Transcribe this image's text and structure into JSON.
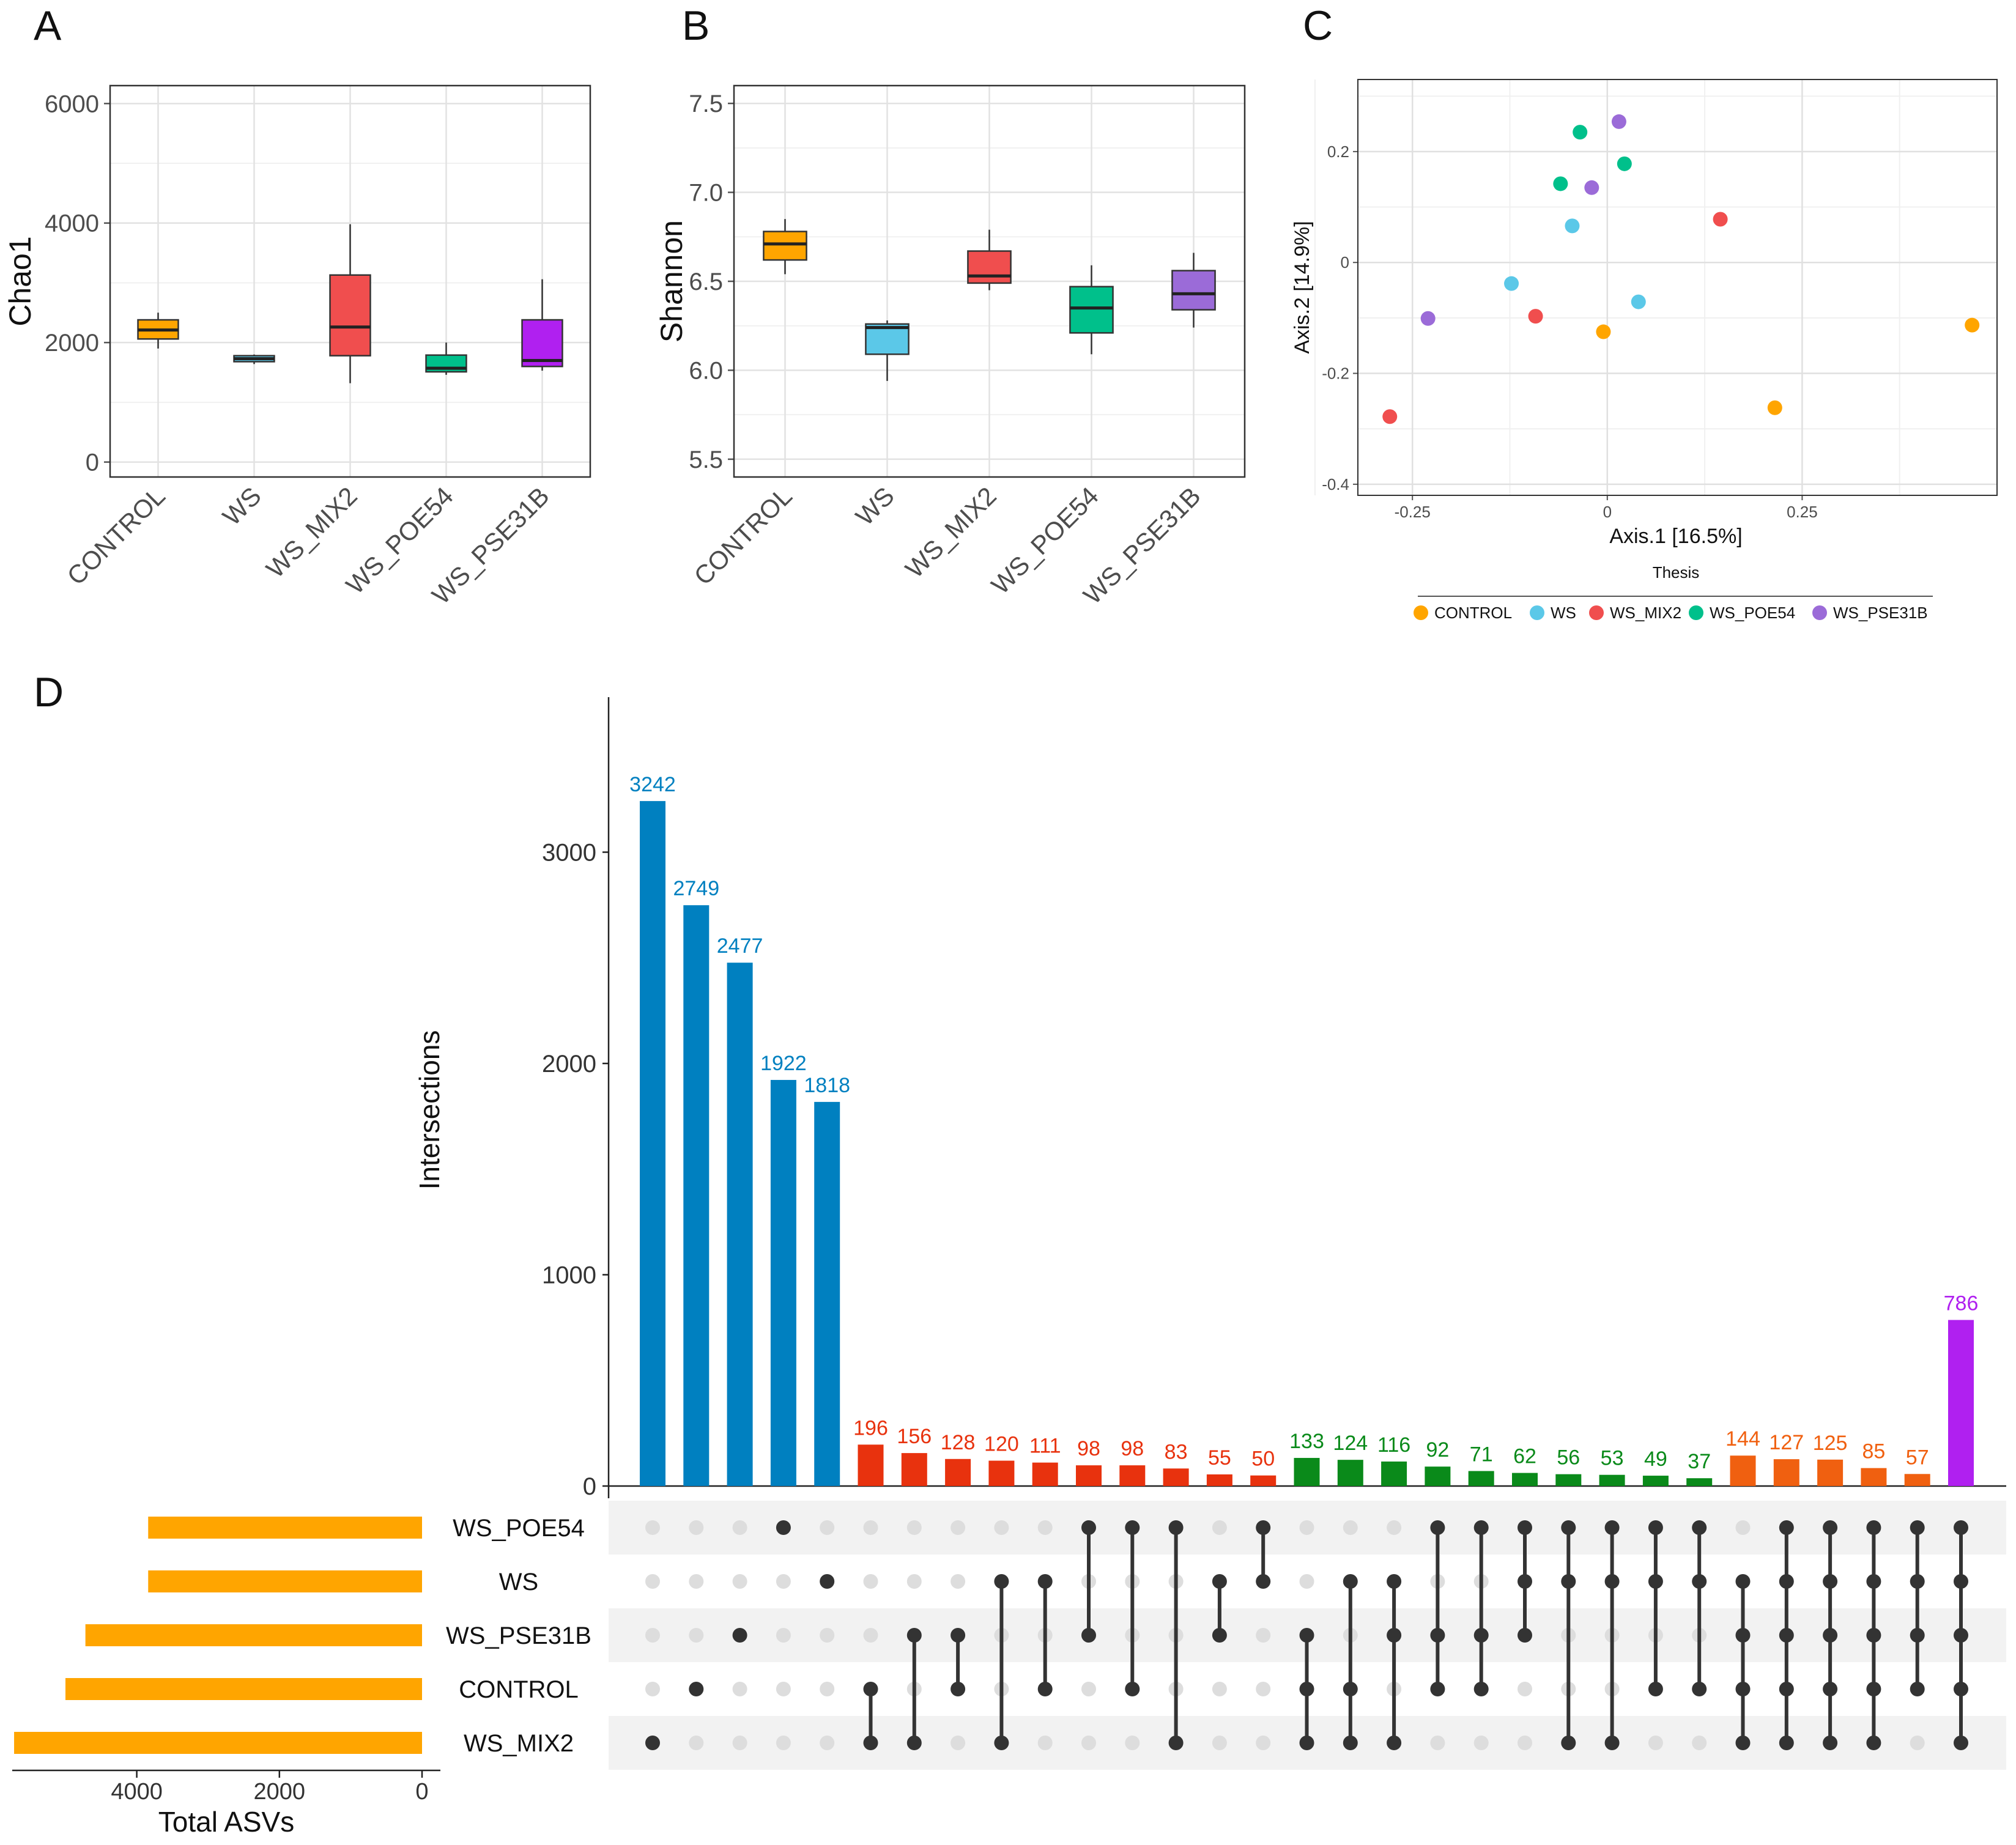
{
  "panel_labels": {
    "a": "A",
    "b": "B",
    "c": "C",
    "d": "D"
  },
  "colors": {
    "CONTROL": "#FFA500",
    "WS": "#5BC8E8",
    "WS_MIX2": "#F04E4E",
    "WS_POE54": "#00C08B",
    "WS_PSE31B_A": "#B020F0",
    "WS_PSE31B_B": "#9B6BD8",
    "blue": "#0080C0",
    "red": "#E8320E",
    "green": "#0A8A1A",
    "orange": "#F06010",
    "purple": "#B020F0",
    "totals": "#FFA500",
    "dot_on": "#333333",
    "dot_off": "#DDDDDD"
  },
  "chart_data": [
    {
      "panel": "A",
      "type": "box",
      "ylabel": "Chao1",
      "ylim": [
        -250,
        6300
      ],
      "yticks": [
        0,
        2000,
        4000,
        6000
      ],
      "categories": [
        "CONTROL",
        "WS",
        "WS_MIX2",
        "WS_POE54",
        "WS_PSE31B"
      ],
      "boxes": [
        {
          "min": 1900,
          "q1": 2060,
          "median": 2210,
          "q3": 2380,
          "max": 2500
        },
        {
          "min": 1640,
          "q1": 1680,
          "median": 1730,
          "q3": 1780,
          "max": 1800
        },
        {
          "min": 1320,
          "q1": 1780,
          "median": 2260,
          "q3": 3130,
          "max": 3980
        },
        {
          "min": 1460,
          "q1": 1510,
          "median": 1570,
          "q3": 1790,
          "max": 2000
        },
        {
          "min": 1530,
          "q1": 1600,
          "median": 1700,
          "q3": 2380,
          "max": 3060
        }
      ]
    },
    {
      "panel": "B",
      "type": "box",
      "ylabel": "Shannon",
      "ylim": [
        5.4,
        7.6
      ],
      "yticks": [
        5.5,
        6.0,
        6.5,
        7.0,
        7.5
      ],
      "ytick_labels": [
        "5.5",
        "6.0",
        "6.5",
        "7.0",
        "7.5"
      ],
      "categories": [
        "CONTROL",
        "WS",
        "WS_MIX2",
        "WS_POE54",
        "WS_PSE31B"
      ],
      "boxes": [
        {
          "min": 6.54,
          "q1": 6.62,
          "median": 6.71,
          "q3": 6.78,
          "max": 6.85
        },
        {
          "min": 5.94,
          "q1": 6.09,
          "median": 6.24,
          "q3": 6.26,
          "max": 6.28
        },
        {
          "min": 6.45,
          "q1": 6.49,
          "median": 6.53,
          "q3": 6.67,
          "max": 6.79
        },
        {
          "min": 6.09,
          "q1": 6.21,
          "median": 6.35,
          "q3": 6.47,
          "max": 6.59
        },
        {
          "min": 6.24,
          "q1": 6.34,
          "median": 6.43,
          "q3": 6.56,
          "max": 6.66
        }
      ]
    },
    {
      "panel": "C",
      "type": "scatter",
      "xlabel": "Axis.1   [16.5%]",
      "ylabel": "Axis.2   [14.9%]",
      "xlim": [
        -0.32,
        0.5
      ],
      "ylim": [
        -0.42,
        0.33
      ],
      "xticks": [
        -0.25,
        0,
        0.25
      ],
      "xtick_labels": [
        "-0.25",
        "0",
        "0.25"
      ],
      "yticks": [
        -0.4,
        -0.2,
        0,
        0.2
      ],
      "ytick_labels": [
        "-0.4",
        "-0.2",
        "0",
        "0.2"
      ],
      "legend_title": "Thesis",
      "legend": [
        "CONTROL",
        "WS",
        "WS_MIX2",
        "WS_POE54",
        "WS_PSE31B"
      ],
      "points": [
        {
          "group": "CONTROL",
          "x": -0.005,
          "y": -0.125
        },
        {
          "group": "CONTROL",
          "x": 0.215,
          "y": -0.262
        },
        {
          "group": "CONTROL",
          "x": 0.468,
          "y": -0.113
        },
        {
          "group": "WS",
          "x": -0.123,
          "y": -0.038
        },
        {
          "group": "WS",
          "x": -0.045,
          "y": 0.066
        },
        {
          "group": "WS",
          "x": 0.04,
          "y": -0.071
        },
        {
          "group": "WS_MIX2",
          "x": -0.279,
          "y": -0.278
        },
        {
          "group": "WS_MIX2",
          "x": -0.092,
          "y": -0.097
        },
        {
          "group": "WS_MIX2",
          "x": 0.145,
          "y": 0.078
        },
        {
          "group": "WS_POE54",
          "x": -0.035,
          "y": 0.235
        },
        {
          "group": "WS_POE54",
          "x": -0.06,
          "y": 0.142
        },
        {
          "group": "WS_POE54",
          "x": 0.022,
          "y": 0.178
        },
        {
          "group": "WS_PSE31B",
          "x": 0.015,
          "y": 0.254
        },
        {
          "group": "WS_PSE31B",
          "x": -0.02,
          "y": 0.135
        },
        {
          "group": "WS_PSE31B",
          "x": -0.23,
          "y": -0.101
        }
      ]
    },
    {
      "panel": "D",
      "type": "upset",
      "ylabel": "Intersections",
      "ylim": [
        0,
        3700
      ],
      "yticks": [
        0,
        1000,
        2000,
        3000
      ],
      "sets": [
        "WS_POE54",
        "WS",
        "WS_PSE31B",
        "CONTROL",
        "WS_MIX2"
      ],
      "set_totals": [
        3840,
        3840,
        4720,
        5000,
        5720
      ],
      "totals_xlabel": "Total ASVs",
      "totals_xticks": [
        4000,
        2000,
        0
      ],
      "intersections": [
        {
          "value": 3242,
          "label": "3242",
          "group": "blue",
          "members": [
            4
          ]
        },
        {
          "value": 2749,
          "label": "2749",
          "group": "blue",
          "members": [
            3
          ]
        },
        {
          "value": 2477,
          "label": "2477",
          "group": "blue",
          "members": [
            2
          ]
        },
        {
          "value": 1922,
          "label": "1922",
          "group": "blue",
          "members": [
            0
          ]
        },
        {
          "value": 1818,
          "label": "1818",
          "group": "blue",
          "members": [
            1
          ]
        },
        {
          "value": 196,
          "label": "196",
          "group": "red",
          "members": [
            3,
            4
          ]
        },
        {
          "value": 156,
          "label": "156",
          "group": "red",
          "members": [
            2,
            4
          ]
        },
        {
          "value": 128,
          "label": "128",
          "group": "red",
          "members": [
            2,
            3
          ]
        },
        {
          "value": 120,
          "label": "120",
          "group": "red",
          "members": [
            1,
            4
          ]
        },
        {
          "value": 111,
          "label": "111",
          "group": "red",
          "members": [
            1,
            3
          ]
        },
        {
          "value": 98,
          "label": "98",
          "group": "red",
          "members": [
            0,
            2
          ]
        },
        {
          "value": 98,
          "label": "98",
          "group": "red",
          "members": [
            0,
            3
          ]
        },
        {
          "value": 83,
          "label": "83",
          "group": "red",
          "members": [
            0,
            4
          ]
        },
        {
          "value": 55,
          "label": "55",
          "group": "red",
          "members": [
            1,
            2
          ]
        },
        {
          "value": 50,
          "label": "50",
          "group": "red",
          "members": [
            0,
            1
          ]
        },
        {
          "value": 133,
          "label": "133",
          "group": "green",
          "members": [
            2,
            3,
            4
          ]
        },
        {
          "value": 124,
          "label": "124",
          "group": "green",
          "members": [
            1,
            3,
            4
          ]
        },
        {
          "value": 116,
          "label": "116",
          "group": "green",
          "members": [
            1,
            2,
            4
          ]
        },
        {
          "value": 92,
          "label": "92",
          "group": "green",
          "members": [
            0,
            2,
            3
          ]
        },
        {
          "value": 71,
          "label": "71",
          "group": "green",
          "members": [
            0,
            2,
            3
          ]
        },
        {
          "value": 62,
          "label": "62",
          "group": "green",
          "members": [
            0,
            1,
            2
          ]
        },
        {
          "value": 56,
          "label": "56",
          "group": "green",
          "members": [
            0,
            1,
            4
          ]
        },
        {
          "value": 53,
          "label": "53",
          "group": "green",
          "members": [
            0,
            1,
            4
          ]
        },
        {
          "value": 49,
          "label": "49",
          "group": "green",
          "members": [
            0,
            1,
            3
          ]
        },
        {
          "value": 37,
          "label": "37",
          "group": "green",
          "members": [
            0,
            1,
            3
          ]
        },
        {
          "value": 144,
          "label": "144",
          "group": "orange",
          "members": [
            1,
            2,
            3,
            4
          ]
        },
        {
          "value": 127,
          "label": "127",
          "group": "orange",
          "members": [
            0,
            1,
            2,
            3,
            4
          ]
        },
        {
          "value": 125,
          "label": "125",
          "group": "orange",
          "members": [
            0,
            1,
            2,
            3,
            4
          ]
        },
        {
          "value": 85,
          "label": "85",
          "group": "orange",
          "members": [
            0,
            1,
            2,
            3,
            4
          ]
        },
        {
          "value": 57,
          "label": "57",
          "group": "orange",
          "members": [
            0,
            1,
            2,
            3
          ]
        },
        {
          "value": 786,
          "label": "786",
          "group": "purple",
          "members": [
            0,
            1,
            2,
            3,
            4
          ]
        }
      ]
    }
  ]
}
